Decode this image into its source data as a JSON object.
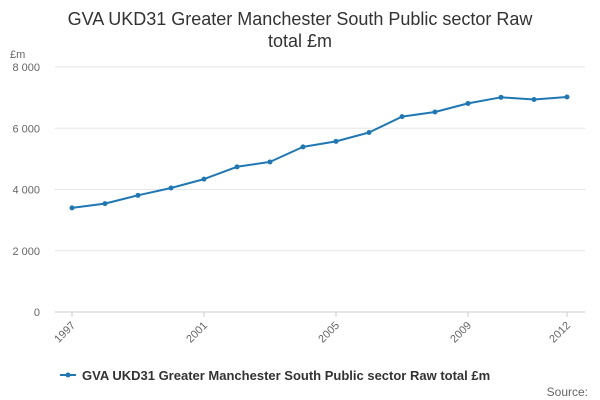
{
  "chart_data": {
    "type": "line",
    "title_lines": [
      "GVA UKD31 Greater Manchester South Public sector Raw",
      "total £m"
    ],
    "unit_label": "£m",
    "x": [
      1997,
      1998,
      1999,
      2000,
      2001,
      2002,
      2003,
      2004,
      2005,
      2006,
      2007,
      2008,
      2009,
      2010,
      2011,
      2012
    ],
    "x_tick_labels": [
      "1997",
      "2001",
      "2005",
      "2009",
      "2012"
    ],
    "y_tick_labels": [
      "0",
      "2 000",
      "4 000",
      "6 000",
      "8 000"
    ],
    "y_ticks": [
      0,
      2000,
      4000,
      6000,
      8000
    ],
    "ylim": [
      0,
      8000
    ],
    "xlim": [
      1997,
      2012
    ],
    "series": [
      {
        "name": "GVA UKD31 Greater Manchester South Public sector Raw total £m",
        "color": "#1f78b4",
        "values": [
          3400,
          3540,
          3810,
          4050,
          4340,
          4740,
          4900,
          5390,
          5570,
          5860,
          6380,
          6530,
          6810,
          7010,
          6940,
          7020
        ]
      }
    ],
    "grid": true,
    "legend_position": "bottom"
  },
  "source_label": "Source:"
}
